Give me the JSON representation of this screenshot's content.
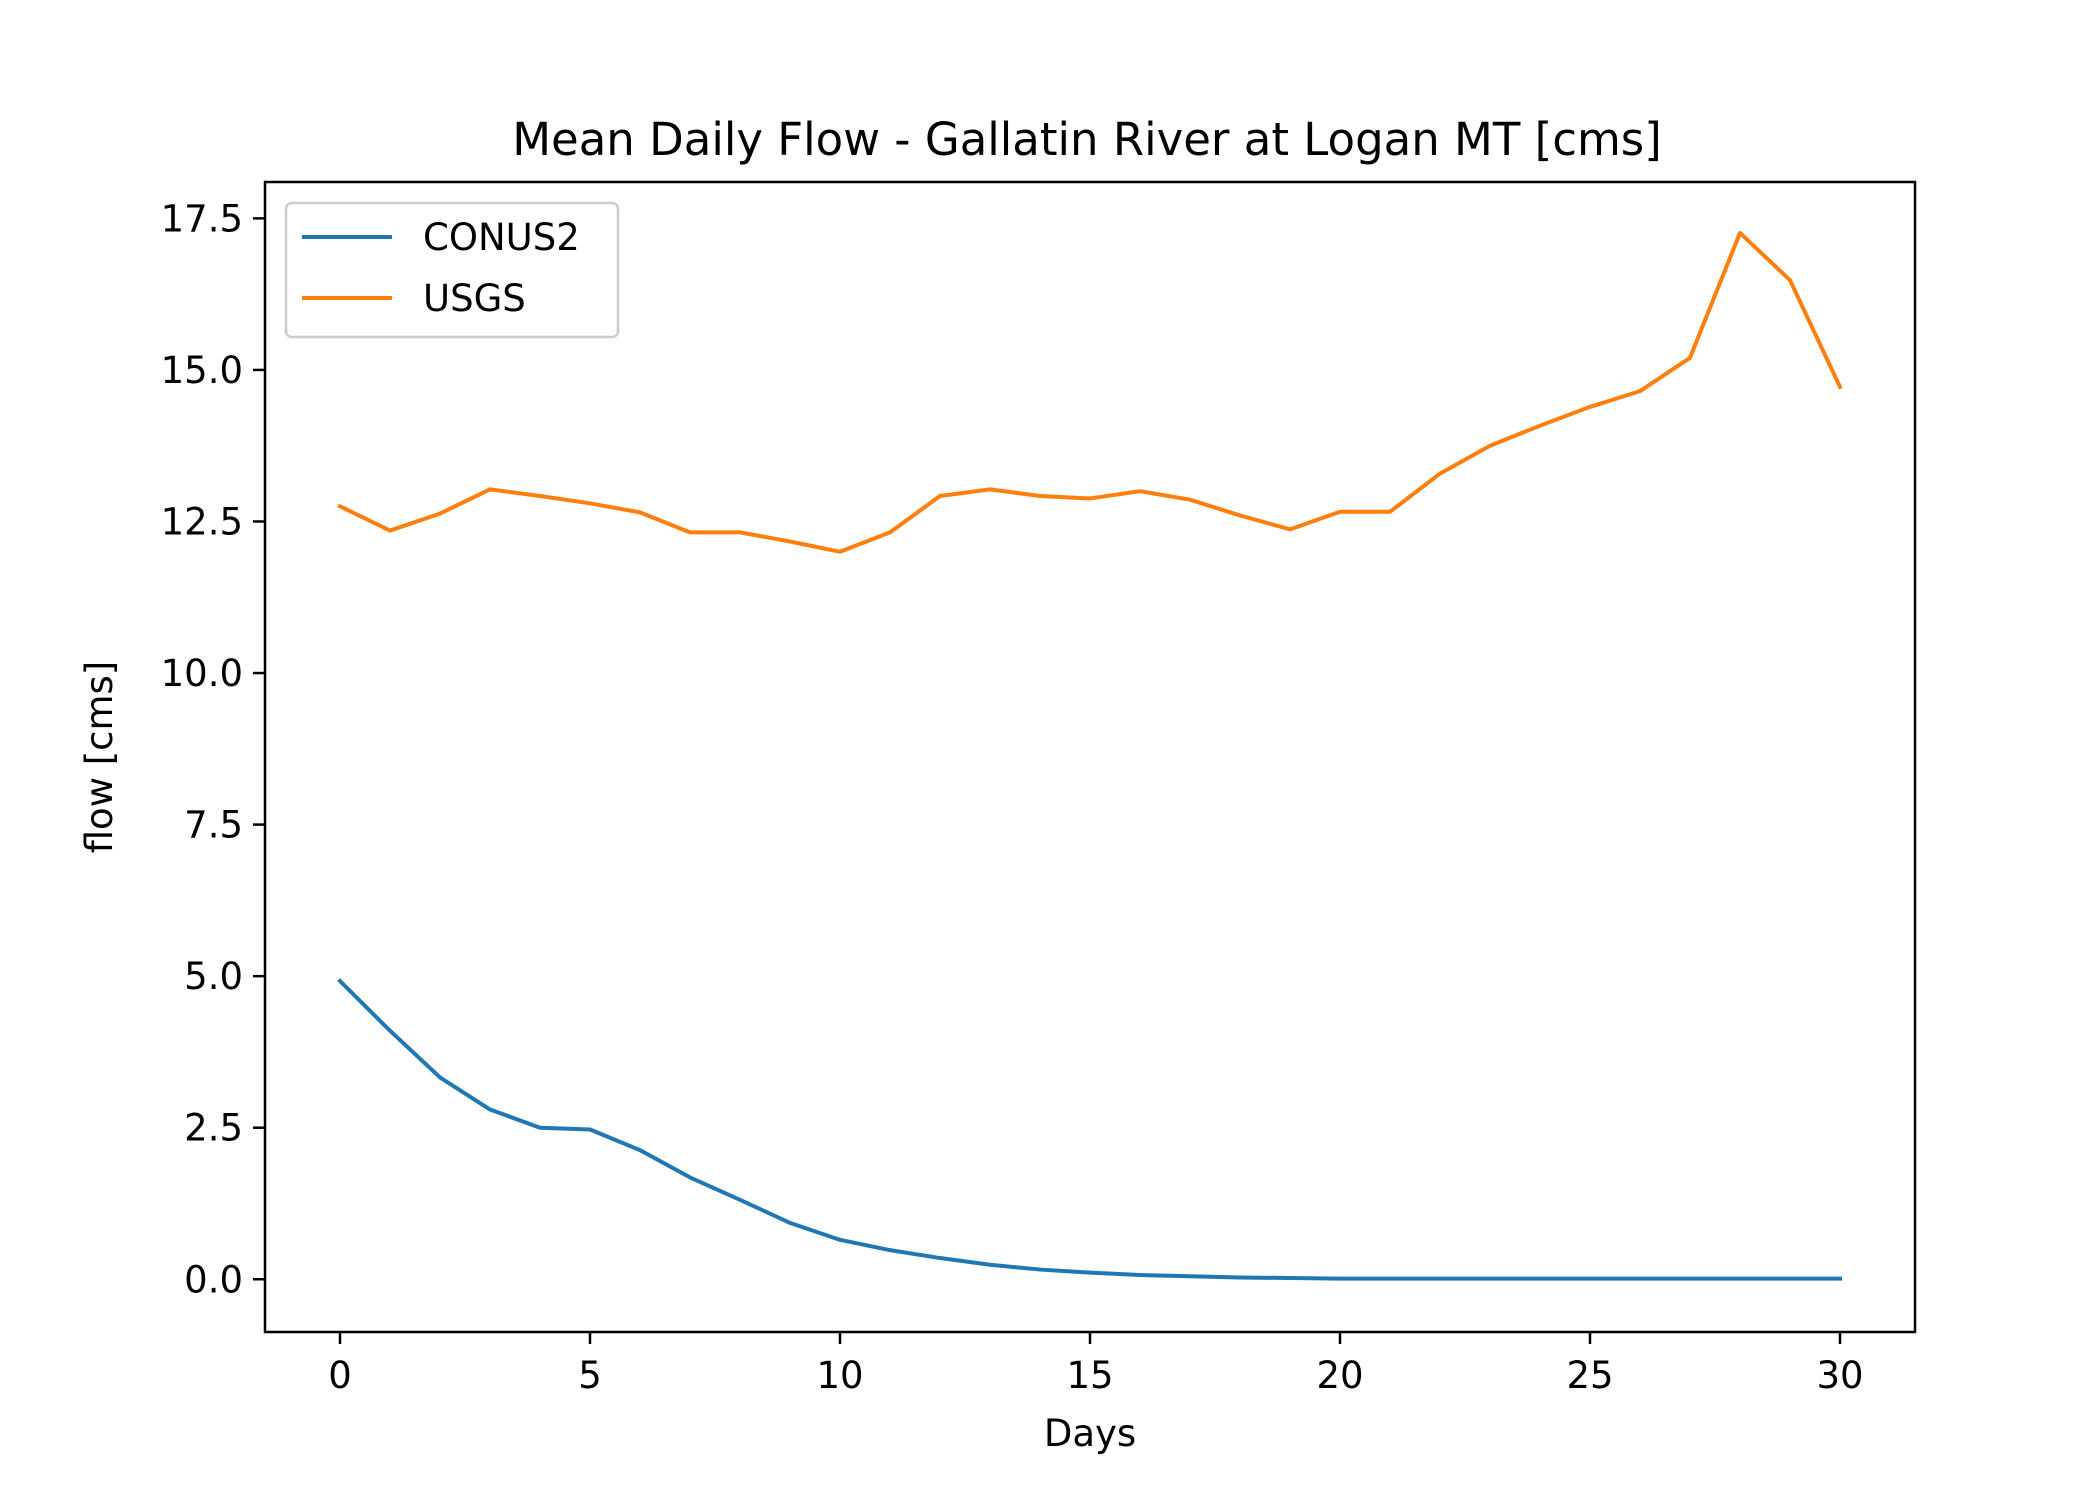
{
  "chart_data": {
    "type": "line",
    "title": "Mean Daily Flow - Gallatin River at Logan MT [cms]",
    "xlabel": "Days",
    "ylabel": "flow [cms]",
    "xlim": [
      -1.5,
      31.5
    ],
    "ylim": [
      -0.87,
      18.1
    ],
    "xticks": [
      0,
      5,
      10,
      15,
      20,
      25,
      30
    ],
    "yticks": [
      0.0,
      2.5,
      5.0,
      7.5,
      10.0,
      12.5,
      15.0,
      17.5
    ],
    "xtick_labels": [
      "0",
      "5",
      "10",
      "15",
      "20",
      "25",
      "30"
    ],
    "ytick_labels": [
      "0.0",
      "2.5",
      "5.0",
      "7.5",
      "10.0",
      "12.5",
      "15.0",
      "17.5"
    ],
    "grid": false,
    "legend_position": "upper-left",
    "x": [
      0,
      1,
      2,
      3,
      4,
      5,
      6,
      7,
      8,
      9,
      10,
      11,
      12,
      13,
      14,
      15,
      16,
      17,
      18,
      19,
      20,
      21,
      22,
      23,
      24,
      25,
      26,
      27,
      28,
      29,
      30
    ],
    "series": [
      {
        "name": "CONUS2",
        "color": "#1f77b4",
        "values": [
          4.92,
          4.1,
          3.33,
          2.8,
          2.5,
          2.47,
          2.13,
          1.68,
          1.31,
          0.93,
          0.65,
          0.48,
          0.35,
          0.24,
          0.16,
          0.11,
          0.07,
          0.05,
          0.03,
          0.02,
          0.01,
          0.01,
          0.01,
          0.01,
          0.01,
          0.01,
          0.01,
          0.01,
          0.01,
          0.01,
          0.01
        ]
      },
      {
        "name": "USGS",
        "color": "#ff7f0e",
        "values": [
          12.75,
          12.35,
          12.63,
          13.03,
          12.92,
          12.8,
          12.65,
          12.32,
          12.32,
          12.17,
          12.0,
          12.32,
          12.92,
          13.03,
          12.92,
          12.88,
          13.0,
          12.86,
          12.6,
          12.37,
          12.66,
          12.66,
          13.29,
          13.75,
          14.08,
          14.39,
          14.65,
          15.2,
          17.26,
          16.48,
          14.72
        ]
      }
    ]
  }
}
